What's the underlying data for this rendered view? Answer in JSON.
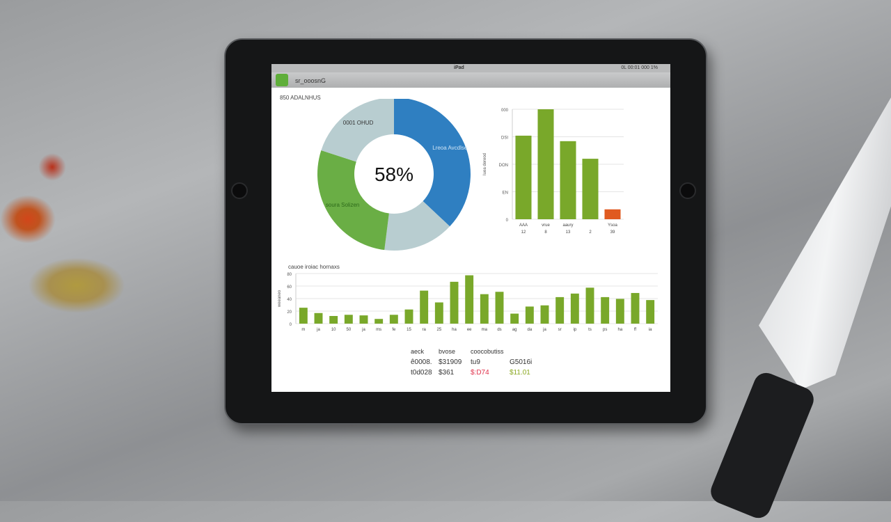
{
  "status_bar": {
    "center": "iPad",
    "right": "0L 00:01  000 1%"
  },
  "header": {
    "app_name": "sr_ooosnG"
  },
  "section_title": "850 ADALNHUS",
  "donut": {
    "center_label": "58%",
    "colors": [
      "#2f7fc1",
      "#b8cdd0",
      "#6aae45",
      "#b8cdd0"
    ]
  },
  "bar_chart_title": "cauoe iroiac hornaxs",
  "table": {
    "headers": [
      "aeck",
      "bvose",
      "coocobutiss",
      ""
    ],
    "rows": [
      [
        "ê0008.",
        "$31909",
        "tu9",
        "G5016i"
      ],
      [
        "t0d028",
        "$361",
        "$:D74",
        "$11.01"
      ]
    ],
    "row2_colors": {
      "negative": "#e0304a",
      "positive": "#8aa820"
    }
  },
  "chart_data": [
    {
      "type": "pie",
      "donut": true,
      "values": [
        37,
        15,
        28,
        20
      ],
      "labels": [
        "Lreoa Avcdlse",
        "",
        "soura Solizen",
        "0001 OHUD"
      ],
      "colors": [
        "#2f7fc1",
        "#b8cdd0",
        "#6aae45",
        "#b8cdd0"
      ]
    },
    {
      "type": "bar",
      "categories": [
        "12",
        "8",
        "13",
        "2",
        "39"
      ],
      "category_sub": [
        "AAA",
        "vrue",
        "aaury",
        "",
        "Ysoa"
      ],
      "values": [
        76,
        100,
        71,
        55,
        9
      ],
      "colors": [
        "#79a82a",
        "#79a82a",
        "#79a82a",
        "#79a82a",
        "#e05a20"
      ],
      "ylabel": "Iuea dereod",
      "yticks": [
        "0",
        "EN",
        "DON",
        "DSI",
        "000"
      ],
      "ylim": [
        0,
        100
      ],
      "grid": true
    },
    {
      "type": "bar",
      "categories": [
        "m",
        "ja",
        "10",
        "50",
        "ja",
        "ms",
        "fe",
        "15",
        "ra",
        "25",
        "ha",
        "ee",
        "ma",
        "ds",
        "ag",
        "da",
        "ja",
        "sr",
        "ip",
        "ts",
        "ps",
        "ha",
        "ff",
        "ia"
      ],
      "values": [
        27,
        18,
        13,
        15,
        14,
        8,
        15,
        24,
        56,
        36,
        71,
        82,
        50,
        54,
        17,
        29,
        31,
        45,
        51,
        61,
        45,
        42,
        52,
        40
      ],
      "color": "#79a82a",
      "title": "cauoe iroiac hornaxs",
      "ylabel": "weeaneo",
      "yticks": [
        "0",
        "20",
        "40",
        "60",
        "80"
      ],
      "ylim": [
        0,
        85
      ],
      "grid": true
    }
  ]
}
